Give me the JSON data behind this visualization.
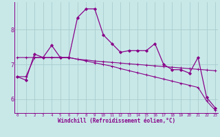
{
  "xlabel": "Windchill (Refroidissement éolien,°C)",
  "background_color": "#c8e8e8",
  "line_color": "#880088",
  "grid_color": "#aacccc",
  "x_ticks": [
    0,
    1,
    2,
    3,
    4,
    5,
    6,
    7,
    8,
    9,
    10,
    11,
    12,
    13,
    14,
    15,
    16,
    17,
    18,
    19,
    20,
    21,
    22,
    23
  ],
  "y_ticks": [
    6,
    7,
    8
  ],
  "ylim": [
    5.6,
    8.8
  ],
  "xlim": [
    -0.3,
    23.3
  ],
  "series": [
    {
      "x": [
        0,
        1,
        2,
        3,
        4,
        5,
        6,
        7,
        8,
        9,
        10,
        11,
        12,
        13,
        14,
        15,
        16,
        17,
        18,
        19,
        20,
        21,
        22,
        23
      ],
      "y": [
        6.65,
        6.55,
        7.3,
        7.2,
        7.55,
        7.2,
        7.2,
        8.35,
        8.6,
        8.6,
        7.85,
        7.6,
        7.35,
        7.4,
        7.4,
        7.4,
        7.6,
        7.0,
        6.85,
        6.85,
        6.75,
        7.2,
        6.05,
        5.75
      ],
      "marker": "D",
      "markersize": 2,
      "linewidth": 0.9
    },
    {
      "x": [
        0,
        1,
        2,
        3,
        4,
        5,
        6,
        7,
        8,
        9,
        10,
        11,
        12,
        13,
        14,
        15,
        16,
        17,
        18,
        19,
        20,
        21,
        22,
        23
      ],
      "y": [
        7.2,
        7.2,
        7.2,
        7.2,
        7.2,
        7.2,
        7.2,
        7.15,
        7.13,
        7.1,
        7.08,
        7.06,
        7.04,
        7.02,
        7.0,
        6.98,
        6.96,
        6.94,
        6.92,
        6.9,
        6.88,
        6.86,
        6.84,
        6.82
      ],
      "marker": "+",
      "markersize": 2.5,
      "linewidth": 0.8
    },
    {
      "x": [
        0,
        1,
        2,
        3,
        4,
        5,
        6,
        7,
        8,
        9,
        10,
        11,
        12,
        13,
        14,
        15,
        16,
        17,
        18,
        19,
        20,
        21,
        22,
        23
      ],
      "y": [
        6.65,
        6.65,
        7.2,
        7.2,
        7.2,
        7.2,
        7.2,
        7.15,
        7.1,
        7.05,
        7.0,
        6.95,
        6.88,
        6.82,
        6.76,
        6.7,
        6.64,
        6.58,
        6.52,
        6.46,
        6.4,
        6.34,
        5.95,
        5.68
      ],
      "marker": "+",
      "markersize": 2.5,
      "linewidth": 0.8
    }
  ]
}
